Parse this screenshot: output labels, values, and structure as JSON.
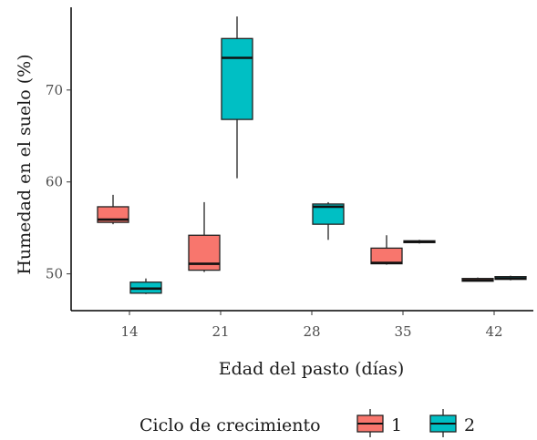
{
  "chart_data": {
    "type": "boxplot",
    "xlabel": "Edad del pasto (días)",
    "ylabel": "Humedad en el suelo (%)",
    "ylim": [
      46.0,
      79.0
    ],
    "yticks": [
      50,
      60,
      70
    ],
    "categories": [
      "14",
      "21",
      "28",
      "35",
      "42"
    ],
    "legend": {
      "title": "Ciclo de crecimiento",
      "placement": "bottom"
    },
    "grid": false,
    "series": [
      {
        "name": "1",
        "color": "#F8766D",
        "boxes": [
          {
            "category": "14",
            "min": 55.4,
            "q1": 55.6,
            "median": 55.9,
            "q3": 57.3,
            "max": 58.6
          },
          {
            "category": "21",
            "min": 50.2,
            "q1": 50.4,
            "median": 51.1,
            "q3": 54.2,
            "max": 57.8
          },
          {
            "category": "35",
            "min": 51.0,
            "q1": 51.1,
            "median": 51.2,
            "q3": 52.8,
            "max": 54.2
          },
          {
            "category": "42",
            "min": 49.2,
            "q1": 49.2,
            "median": 49.3,
            "q3": 49.5,
            "max": 49.6
          }
        ]
      },
      {
        "name": "2",
        "color": "#00BFC4",
        "boxes": [
          {
            "category": "14",
            "min": 47.8,
            "q1": 47.9,
            "median": 48.4,
            "q3": 49.1,
            "max": 49.5
          },
          {
            "category": "21",
            "min": 60.4,
            "q1": 66.8,
            "median": 73.5,
            "q3": 75.6,
            "max": 78.0
          },
          {
            "category": "28",
            "min": 53.7,
            "q1": 55.4,
            "median": 57.3,
            "q3": 57.6,
            "max": 57.8
          },
          {
            "category": "35",
            "min": 53.3,
            "q1": 53.4,
            "median": 53.5,
            "q3": 53.6,
            "max": 53.7
          },
          {
            "category": "42",
            "min": 49.3,
            "q1": 49.4,
            "median": 49.5,
            "q3": 49.7,
            "max": 49.8
          }
        ]
      }
    ]
  }
}
